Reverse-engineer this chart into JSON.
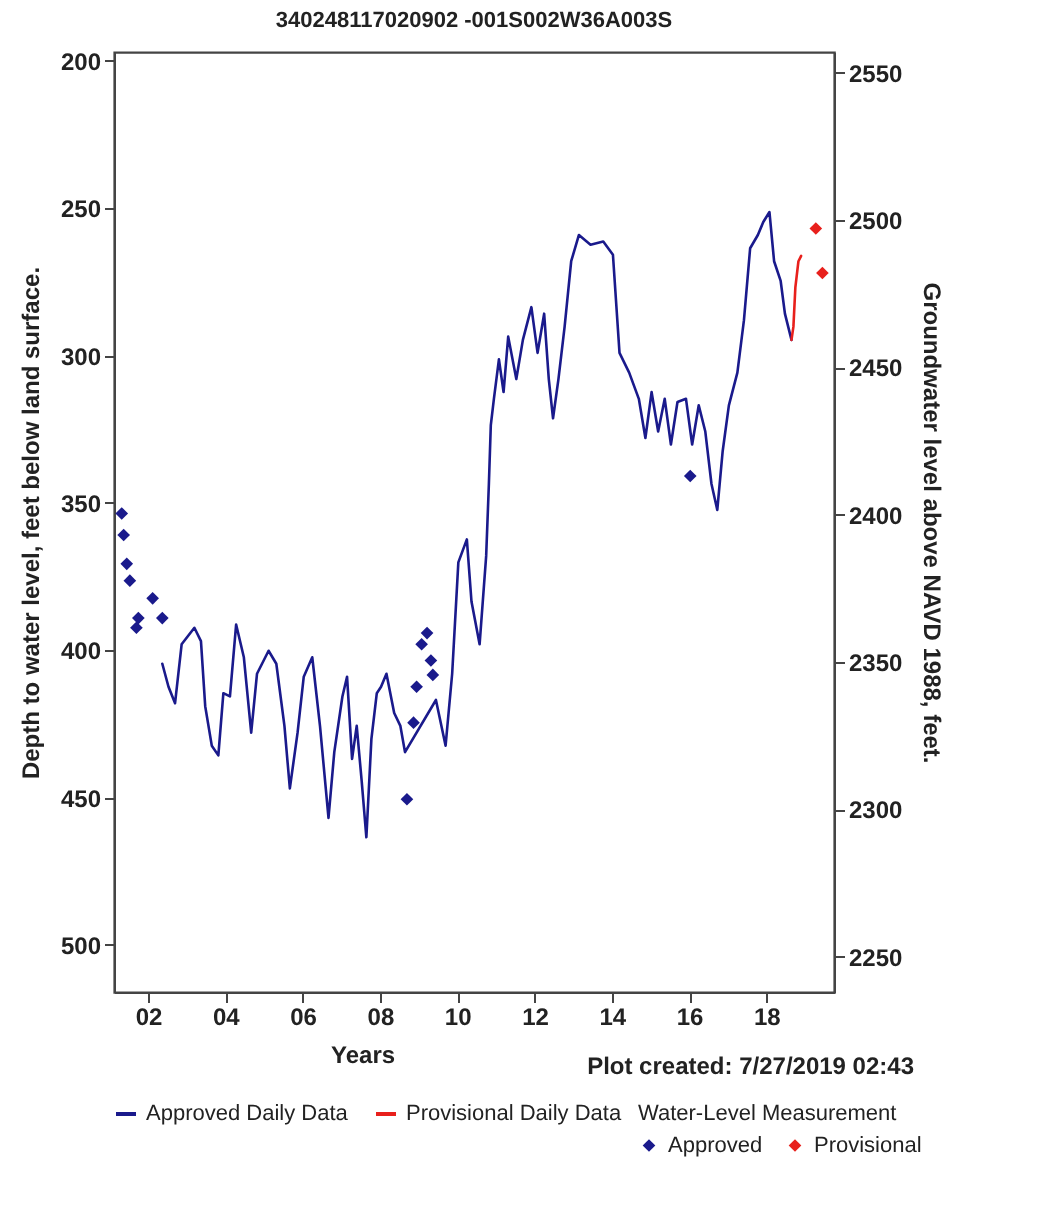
{
  "chart_data": {
    "type": "line",
    "title": "340248117020902 -001S002W36A003S",
    "xlabel": "Years",
    "ylabel": "Depth to water level, feet below land surface.",
    "y2label": "Groundwater level above NAVD 1988, feet.",
    "legend_title": "Water-Level Measurement",
    "legend": "bottom",
    "grid": false,
    "annotations": [
      "Plot created: 7/27/2019 02:43"
    ],
    "xlim": [
      2001.12,
      2019.75
    ],
    "xticks": [
      {
        "value": 2002,
        "label": "02"
      },
      {
        "value": 2004,
        "label": "04"
      },
      {
        "value": 2006,
        "label": "06"
      },
      {
        "value": 2008,
        "label": "08"
      },
      {
        "value": 2010,
        "label": "10"
      },
      {
        "value": 2012,
        "label": "12"
      },
      {
        "value": 2014,
        "label": "14"
      },
      {
        "value": 2016,
        "label": "16"
      },
      {
        "value": 2018,
        "label": "18"
      }
    ],
    "ylim": [
      516,
      197
    ],
    "yticks": [
      200,
      250,
      300,
      350,
      400,
      450,
      500
    ],
    "y2lim": [
      2238,
      2557
    ],
    "y2ticks": [
      2250,
      2300,
      2350,
      2400,
      2450,
      2500,
      2550
    ],
    "series": [
      {
        "name": "Approved Daily Data",
        "color": "#1a1a8c",
        "x": [
          2002.37,
          2002.53,
          2002.7,
          2002.87,
          2003.2,
          2003.37,
          2003.48,
          2003.65,
          2003.82,
          2003.95,
          2004.12,
          2004.28,
          2004.48,
          2004.67,
          2004.82,
          2005.12,
          2005.32,
          2005.53,
          2005.67,
          2005.87,
          2006.03,
          2006.25,
          2006.45,
          2006.67,
          2006.82,
          2007.03,
          2007.15,
          2007.28,
          2007.4,
          2007.53,
          2007.65,
          2007.78,
          2007.92,
          2008.03,
          2008.17,
          2008.37,
          2008.53,
          2008.65,
          2009.45,
          2009.7,
          2009.87,
          2010.03,
          2010.25,
          2010.37,
          2010.58,
          2010.75,
          2010.82,
          2010.87,
          2010.95,
          2011.08,
          2011.2,
          2011.32,
          2011.53,
          2011.7,
          2011.92,
          2012.08,
          2012.25,
          2012.37,
          2012.48,
          2012.62,
          2012.78,
          2012.95,
          2013.15,
          2013.45,
          2013.78,
          2014.03,
          2014.2,
          2014.45,
          2014.7,
          2014.87,
          2015.03,
          2015.2,
          2015.37,
          2015.53,
          2015.7,
          2015.92,
          2016.08,
          2016.25,
          2016.42,
          2016.58,
          2016.73,
          2016.87,
          2017.03,
          2017.25,
          2017.42,
          2017.58,
          2017.78,
          2017.92,
          2018.08,
          2018.2,
          2018.37,
          2018.48,
          2018.65
        ],
        "values": [
          404.6,
          412.4,
          418,
          398,
          392.4,
          396.9,
          419,
          432.4,
          435.7,
          414.6,
          415.7,
          391.3,
          402.4,
          428,
          408,
          400.2,
          404.6,
          425.7,
          446.9,
          428,
          409,
          402.4,
          425.7,
          456.9,
          434.6,
          415.7,
          409,
          436.9,
          425.7,
          444.6,
          463.5,
          430.2,
          414.6,
          412.4,
          408,
          421.3,
          425.7,
          434.6,
          416.9,
          432.4,
          408,
          370.2,
          362.4,
          383.5,
          398,
          368,
          343.6,
          323.6,
          314.7,
          301.3,
          312.4,
          293.6,
          308,
          294.7,
          283.6,
          299.1,
          285.8,
          308,
          321.3,
          308,
          290.2,
          268,
          259.1,
          262.4,
          261.3,
          265.8,
          299.1,
          305.8,
          314.7,
          328,
          312.4,
          325.8,
          314.7,
          330.2,
          315.8,
          314.7,
          330.2,
          316.9,
          325.8,
          343.6,
          352.4,
          332.4,
          316.9,
          305.8,
          288,
          263.6,
          259.1,
          254.7,
          251.3,
          268,
          274.7,
          285.8,
          294.7
        ]
      },
      {
        "name": "Provisional Daily Data",
        "color": "#e8201c",
        "x": [
          2018.65,
          2018.7,
          2018.75,
          2018.83,
          2018.9
        ],
        "values": [
          294.7,
          290.2,
          276.9,
          268,
          266.2
        ]
      },
      {
        "name": "Approved",
        "type": "scatter",
        "marker": "diamond",
        "color": "#1a1a8c",
        "x": [
          2001.32,
          2001.37,
          2001.45,
          2001.53,
          2001.7,
          2001.75,
          2002.12,
          2002.37,
          2008.7,
          2008.87,
          2008.95,
          2009.08,
          2009.22,
          2009.32,
          2009.37,
          2016.03
        ],
        "values": [
          353.6,
          360.9,
          370.7,
          376.4,
          392.4,
          389.1,
          382.4,
          389.1,
          450.6,
          424.6,
          412.4,
          398,
          394.2,
          403.5,
          408.4,
          340.9
        ]
      },
      {
        "name": "Provisional",
        "type": "scatter",
        "marker": "diamond",
        "color": "#e8201c",
        "x": [
          2019.28,
          2019.45
        ],
        "values": [
          256.9,
          272
        ]
      }
    ]
  }
}
